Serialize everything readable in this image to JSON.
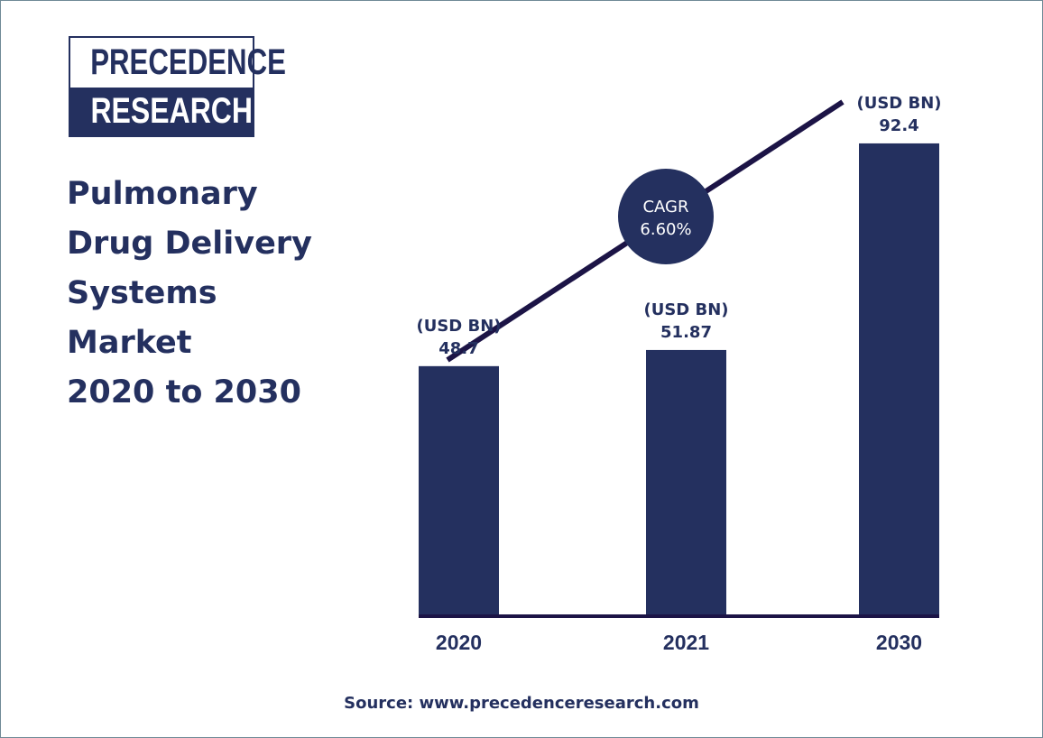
{
  "logo": {
    "line1": "PRECEDENCE",
    "line2": "RESEARCH"
  },
  "title_lines": [
    "Pulmonary",
    "Drug Delivery",
    "Systems",
    "Market",
    "2020 to 2030"
  ],
  "source": "Source: www.precedenceresearch.com",
  "colors": {
    "navy": "#24305f",
    "trend": "#1c1446",
    "frame": "#6f8a96"
  },
  "chart_data": {
    "type": "bar",
    "title": "Pulmonary Drug Delivery Systems Market 2020 to 2030",
    "categories": [
      "2020",
      "2021",
      "2030"
    ],
    "values": [
      48.7,
      51.87,
      92.4
    ],
    "unit_label": "(USD BN)",
    "value_labels": [
      "48.7",
      "51.87",
      "92.4"
    ],
    "annotation": {
      "line1": "CAGR",
      "line2": "6.60%"
    },
    "ylim": [
      0,
      100
    ],
    "grid": false,
    "legend": "none"
  }
}
